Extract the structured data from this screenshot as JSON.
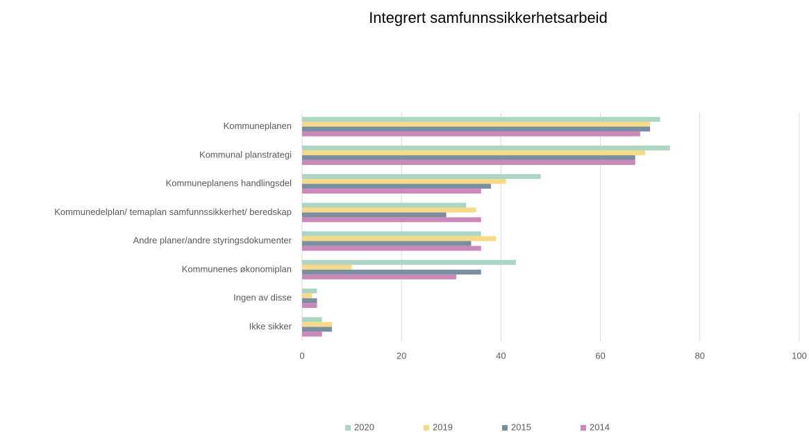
{
  "chart_data": {
    "type": "hbar",
    "title": "Integrert samfunnssikkerhetsarbeid",
    "categories": [
      "Kommuneplanen",
      "Kommunal planstrategi",
      "Kommuneplanens handlingsdel",
      "Kommunedelplan/ temaplan samfunnssikkerhet/ beredskap",
      "Andre planer/andre styringsdokumenter",
      "Kommunenes økonomiplan",
      "Ingen av disse",
      "Ikke sikker"
    ],
    "series": [
      {
        "name": "2020",
        "color": "#acd5c2",
        "values": [
          72,
          74,
          48,
          33,
          36,
          43,
          3,
          4
        ]
      },
      {
        "name": "2019",
        "color": "#f7da88",
        "values": [
          70,
          69,
          41,
          35,
          39,
          10,
          2,
          6
        ]
      },
      {
        "name": "2015",
        "color": "#7b8e9f",
        "values": [
          70,
          67,
          38,
          29,
          34,
          36,
          3,
          6
        ]
      },
      {
        "name": "2014",
        "color": "#cb88ba",
        "values": [
          68,
          67,
          36,
          36,
          36,
          31,
          3,
          4
        ]
      }
    ],
    "xlim": [
      0,
      100
    ],
    "xticks": [
      0,
      20,
      40,
      60,
      80,
      100
    ],
    "grid": true,
    "legend": "bottom"
  }
}
